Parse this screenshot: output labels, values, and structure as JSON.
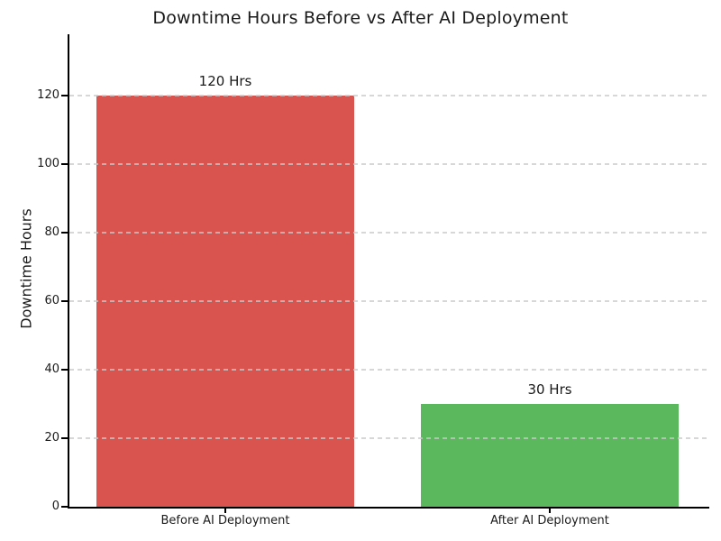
{
  "page": {
    "title": "Downtime Hours Before vs After AI Deployment"
  },
  "chart_data": {
    "type": "bar",
    "title": "Downtime Hours Before vs After AI Deployment",
    "categories": [
      "Before AI Deployment",
      "After AI Deployment"
    ],
    "values": [
      120,
      30
    ],
    "bar_labels": [
      "120 Hrs",
      "30 Hrs"
    ],
    "bar_colors": [
      "#d9534f",
      "#5cb85c"
    ],
    "xlabel": "",
    "ylabel": "Downtime Hours",
    "ylim": [
      0,
      138
    ],
    "yticks": [
      0,
      20,
      40,
      60,
      80,
      100,
      120
    ],
    "grid": "horizontal-dashed",
    "grid_color": "#cccccc",
    "axis_color": "#000000",
    "text_color": "#1a1a1a",
    "background": "#ffffff",
    "legend": "none"
  }
}
